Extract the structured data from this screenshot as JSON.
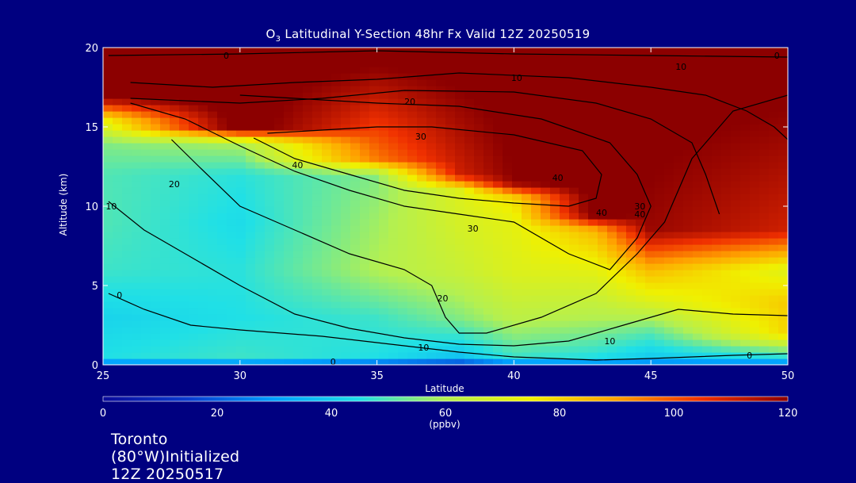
{
  "title": {
    "prefix": "O",
    "subscript": "3",
    "rest": " Latitudinal Y-Section 48hr  Fx Valid 12Z 20250519"
  },
  "footer": "Toronto (80°W)Initialized 12Z 20250517",
  "chart_data": {
    "type": "heatmap",
    "xlabel": "Latitude",
    "ylabel": "Altitude (km)",
    "xlim": [
      25,
      50
    ],
    "ylim": [
      0,
      20
    ],
    "x_ticks": [
      25,
      30,
      35,
      40,
      45,
      50
    ],
    "y_ticks": [
      0,
      5,
      10,
      15,
      20
    ],
    "colorbar": {
      "min": 0,
      "max": 120,
      "ticks": [
        0,
        20,
        40,
        60,
        80,
        100,
        120
      ],
      "unit_label": "(ppbv)",
      "colors": [
        "#0a0a9a",
        "#0a3cd0",
        "#00a0ff",
        "#20e0e6",
        "#b4f050",
        "#f0f000",
        "#ffa000",
        "#f03000",
        "#8c0000"
      ]
    },
    "field_profiles": [
      {
        "lat": 25,
        "alts": [
          0,
          0.5,
          3,
          6,
          9,
          12,
          14,
          15.5,
          17,
          20
        ],
        "values": [
          22,
          45,
          42,
          48,
          50,
          50,
          55,
          75,
          125,
          125
        ]
      },
      {
        "lat": 30,
        "alts": [
          0,
          0.5,
          3,
          6,
          9,
          12,
          14,
          15,
          20
        ],
        "values": [
          22,
          48,
          45,
          46,
          44,
          46,
          60,
          125,
          125
        ]
      },
      {
        "lat": 35,
        "alts": [
          0,
          0.5,
          3,
          6,
          9,
          12,
          13,
          20
        ],
        "values": [
          15,
          45,
          48,
          60,
          58,
          55,
          95,
          125
        ]
      },
      {
        "lat": 38,
        "alts": [
          0,
          0.5,
          3,
          6,
          9,
          11,
          12,
          20
        ],
        "values": [
          10,
          38,
          55,
          65,
          68,
          70,
          110,
          125
        ]
      },
      {
        "lat": 40,
        "alts": [
          0,
          0.5,
          3,
          6,
          9,
          10.5,
          11.5,
          20
        ],
        "values": [
          20,
          48,
          62,
          70,
          72,
          78,
          120,
          125
        ]
      },
      {
        "lat": 43,
        "alts": [
          0,
          0.5,
          3,
          6,
          8.5,
          9.5,
          20
        ],
        "values": [
          22,
          45,
          60,
          72,
          86,
          125,
          125
        ]
      },
      {
        "lat": 45,
        "alts": [
          0,
          0.5,
          2,
          4,
          6,
          8.5,
          20
        ],
        "values": [
          22,
          40,
          50,
          70,
          85,
          118,
          125
        ]
      },
      {
        "lat": 50,
        "alts": [
          0,
          0.5,
          2,
          4,
          6,
          8.5,
          20
        ],
        "values": [
          22,
          45,
          80,
          82,
          70,
          110,
          125
        ]
      }
    ],
    "contours": [
      {
        "label": "0",
        "points": [
          [
            25.2,
            4.5
          ],
          [
            26.5,
            3.5
          ],
          [
            28.2,
            2.5
          ],
          [
            30,
            2.2
          ],
          [
            33,
            1.8
          ],
          [
            36,
            1.2
          ],
          [
            38,
            0.8
          ],
          [
            40,
            0.5
          ],
          [
            43,
            0.3
          ],
          [
            45,
            0.4
          ],
          [
            48,
            0.6
          ],
          [
            50,
            0.7
          ]
        ],
        "labels_at": [
          [
            25.6,
            4.4
          ],
          [
            33.4,
            0.2
          ],
          [
            48.6,
            0.6
          ]
        ]
      },
      {
        "label": "10",
        "points": [
          [
            25.2,
            10.3
          ],
          [
            26.5,
            8.5
          ],
          [
            28,
            7
          ],
          [
            30,
            5
          ],
          [
            32,
            3.2
          ],
          [
            34,
            2.3
          ],
          [
            36,
            1.7
          ],
          [
            38,
            1.3
          ],
          [
            40,
            1.2
          ],
          [
            42,
            1.5
          ],
          [
            44,
            2.5
          ],
          [
            46,
            3.5
          ],
          [
            48,
            3.2
          ],
          [
            50,
            3.1
          ]
        ],
        "labels_at": [
          [
            25.3,
            10.0
          ],
          [
            36.7,
            1.1
          ],
          [
            43.5,
            1.5
          ]
        ]
      },
      {
        "label": "20",
        "points": [
          [
            27.5,
            14.2
          ],
          [
            28.5,
            12.5
          ],
          [
            30,
            10
          ],
          [
            32,
            8.5
          ],
          [
            34,
            7
          ],
          [
            36,
            6
          ],
          [
            37,
            5
          ],
          [
            37.5,
            3
          ],
          [
            38,
            2
          ],
          [
            39,
            2
          ],
          [
            41,
            3
          ],
          [
            43,
            4.5
          ],
          [
            44.5,
            7
          ],
          [
            45.5,
            9
          ],
          [
            46,
            11
          ],
          [
            46.5,
            13
          ],
          [
            47,
            14
          ],
          [
            48,
            16
          ],
          [
            50,
            17
          ]
        ],
        "labels_at": [
          [
            27.6,
            11.4
          ],
          [
            37.4,
            4.2
          ]
        ]
      },
      {
        "label": "30",
        "points": [
          [
            26,
            16.5
          ],
          [
            28,
            15.5
          ],
          [
            30,
            13.8
          ],
          [
            32,
            12.2
          ],
          [
            34,
            11
          ],
          [
            36,
            10
          ],
          [
            38,
            9.5
          ],
          [
            40,
            9
          ],
          [
            42,
            7
          ],
          [
            43.5,
            6
          ],
          [
            44.5,
            8
          ],
          [
            45,
            10
          ],
          [
            44.5,
            12
          ],
          [
            43.5,
            14
          ],
          [
            41,
            15.5
          ],
          [
            38,
            16.3
          ],
          [
            35,
            16.5
          ],
          [
            32,
            16.8
          ],
          [
            30,
            17
          ]
        ],
        "labels_at": [
          [
            38.5,
            8.6
          ],
          [
            36.6,
            14.4
          ],
          [
            44.6,
            10
          ]
        ]
      },
      {
        "label": "40",
        "points": [
          [
            30.5,
            14.3
          ],
          [
            32,
            13
          ],
          [
            34,
            12
          ],
          [
            36,
            11
          ],
          [
            38,
            10.5
          ],
          [
            40,
            10.2
          ],
          [
            42,
            10
          ],
          [
            43,
            10.5
          ],
          [
            43.2,
            12
          ],
          [
            42.5,
            13.5
          ],
          [
            40,
            14.5
          ],
          [
            37,
            15
          ],
          [
            35,
            15
          ],
          [
            33,
            14.8
          ],
          [
            31,
            14.6
          ]
        ],
        "labels_at": [
          [
            32.1,
            12.6
          ],
          [
            41.6,
            11.8
          ],
          [
            44.6,
            9.5
          ],
          [
            43.2,
            9.6
          ]
        ]
      },
      {
        "label": "10",
        "points": [
          [
            26,
            17.8
          ],
          [
            29,
            17.5
          ],
          [
            32,
            17.8
          ],
          [
            35,
            18
          ],
          [
            38,
            18.4
          ],
          [
            42,
            18.1
          ],
          [
            45,
            17.5
          ],
          [
            47,
            17
          ],
          [
            48.5,
            16
          ],
          [
            49.5,
            15
          ],
          [
            50,
            14.2
          ]
        ],
        "labels_at": [
          [
            40.1,
            18.1
          ],
          [
            46.1,
            18.8
          ]
        ]
      },
      {
        "label": "20",
        "points": [
          [
            26,
            16.8
          ],
          [
            30,
            16.5
          ],
          [
            33,
            16.8
          ],
          [
            36,
            17.3
          ],
          [
            40,
            17.2
          ],
          [
            43,
            16.5
          ],
          [
            45,
            15.5
          ],
          [
            46.5,
            14
          ],
          [
            47,
            12
          ],
          [
            47.5,
            9.5
          ]
        ],
        "labels_at": [
          [
            36.2,
            16.6
          ]
        ]
      },
      {
        "label": "0",
        "points": [
          [
            25.2,
            19.5
          ],
          [
            30,
            19.6
          ],
          [
            35,
            19.8
          ],
          [
            40,
            19.6
          ],
          [
            45,
            19.5
          ],
          [
            50,
            19.4
          ]
        ],
        "labels_at": [
          [
            29.5,
            19.5
          ],
          [
            49.6,
            19.5
          ]
        ]
      }
    ]
  }
}
